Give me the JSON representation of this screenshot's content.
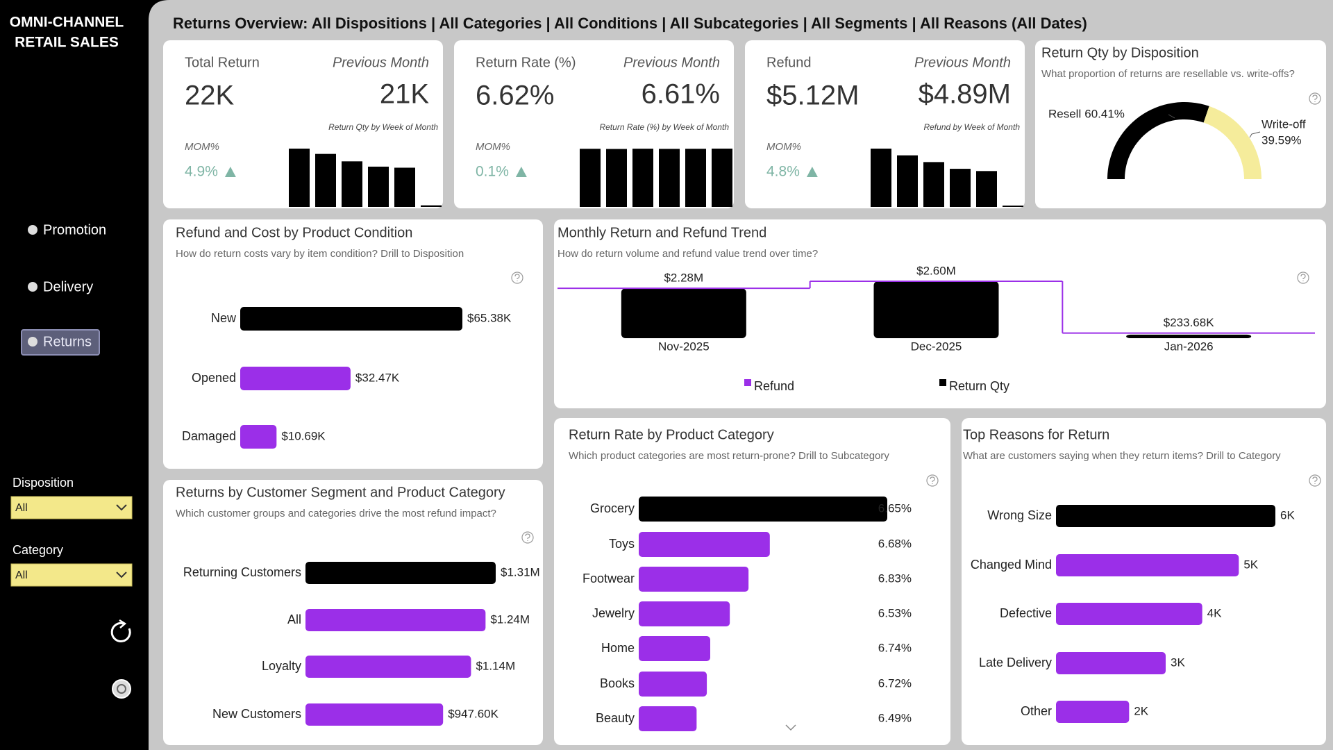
{
  "sidebar": {
    "title_lines": [
      "OMNI-CHANNEL",
      "RETAIL SALES"
    ],
    "nav": [
      "Promotion",
      "Delivery",
      "Returns"
    ],
    "filters": [
      {
        "label": "Disposition",
        "value": "All"
      },
      {
        "label": "Category",
        "value": "All"
      }
    ]
  },
  "header": {
    "title": "Returns Overview: All Dispositions | All Categories | All Conditions | All Subcategories | All Segments | All Reasons (All Dates)"
  },
  "kpis": [
    {
      "label": "Total Return",
      "compare_label": "Previous Month",
      "value": "22K",
      "previous": "21K",
      "chart_title": "Return Qty by Week of Month",
      "mom_label": "MOM%",
      "mom": "4.9%",
      "weekly": [
        5500,
        5000,
        4300,
        3800,
        3700,
        150
      ]
    },
    {
      "label": "Return Rate (%)",
      "compare_label": "Previous Month",
      "value": "6.62%",
      "previous": "6.61%",
      "chart_title": "Return Rate (%) by Week of Month",
      "mom_label": "MOM%",
      "mom": "0.1%",
      "weekly": [
        6.62,
        6.6,
        6.63,
        6.61,
        6.62,
        6.64
      ]
    },
    {
      "label": "Refund",
      "compare_label": "Previous Month",
      "value": "$5.12M",
      "previous": "$4.89M",
      "chart_title": "Refund by Week of Month",
      "mom_label": "MOM%",
      "mom": "4.8%",
      "weekly": [
        1300000,
        1150000,
        1000000,
        850000,
        800000,
        30000
      ]
    }
  ],
  "chart_data": [
    {
      "type": "gauge",
      "title": "Return Qty by Disposition",
      "subtitle": "What proportion of returns are resellable vs. write-offs?",
      "categories": [
        "Resell",
        "Write-off"
      ],
      "values": [
        60.41,
        39.59
      ],
      "value_labels": [
        "60.41%",
        "39.59%"
      ],
      "colors": [
        "#000000",
        "#f5ec9b"
      ]
    },
    {
      "type": "combo",
      "title": "Monthly Return and Refund Trend",
      "subtitle": "How do return volume and refund value trend over time?",
      "categories": [
        "Nov-2025",
        "Dec-2025",
        "Jan-2026"
      ],
      "series": [
        {
          "name": "Refund",
          "color": "#9b2fe8",
          "values": [
            2280000,
            2600000,
            233680
          ],
          "value_labels": [
            "$2.28M",
            "$2.60M",
            "$233.68K"
          ]
        },
        {
          "name": "Return Qty",
          "color": "#000000",
          "values": [
            21000,
            24000,
            1500
          ]
        }
      ]
    },
    {
      "type": "hbar",
      "title": "Refund and Cost by Product Condition",
      "subtitle": "How do return costs vary by item condition? Drill to Disposition",
      "categories": [
        "New",
        "Opened",
        "Damaged"
      ],
      "values": [
        65380,
        32470,
        10690
      ],
      "value_labels": [
        "$65.38K",
        "$32.47K",
        "$10.69K"
      ],
      "colors": [
        "#000000",
        "#9b2fe8",
        "#9b2fe8"
      ]
    },
    {
      "type": "hbar",
      "title": "Returns by Customer Segment and Product Category",
      "subtitle": "Which customer groups and categories drive the most refund impact?",
      "categories": [
        "Returning Customers",
        "All",
        "Loyalty",
        "New Customers"
      ],
      "values": [
        1310000,
        1240000,
        1140000,
        947600
      ],
      "value_labels": [
        "$1.31M",
        "$1.24M",
        "$1.14M",
        "$947.60K"
      ],
      "colors": [
        "#000000",
        "#9b2fe8",
        "#9b2fe8",
        "#9b2fe8"
      ]
    },
    {
      "type": "hbar",
      "title": "Return Rate by Product Category",
      "subtitle": "Which product categories are most return-prone? Drill to Subcategory",
      "categories": [
        "Grocery",
        "Toys",
        "Footwear",
        "Jewelry",
        "Home",
        "Books",
        "Beauty"
      ],
      "values": [
        6.65,
        6.68,
        6.83,
        6.53,
        6.74,
        6.72,
        6.49
      ],
      "value_labels": [
        "6.65%",
        "6.68%",
        "6.83%",
        "6.53%",
        "6.74%",
        "6.72%",
        "6.49%"
      ],
      "bar_values": [
        2920,
        1540,
        1290,
        1070,
        840,
        800,
        680
      ],
      "colors": [
        "#000000",
        "#9b2fe8",
        "#9b2fe8",
        "#9b2fe8",
        "#9b2fe8",
        "#9b2fe8",
        "#9b2fe8"
      ]
    },
    {
      "type": "hbar",
      "title": "Top Reasons for Return",
      "subtitle": "What are customers saying when they return items? Drill to Category",
      "categories": [
        "Wrong Size",
        "Changed Mind",
        "Defective",
        "Late Delivery",
        "Other"
      ],
      "values": [
        6000,
        5000,
        4000,
        3000,
        2000
      ],
      "value_labels": [
        "6K",
        "5K",
        "4K",
        "3K",
        "2K"
      ],
      "colors": [
        "#000000",
        "#9b2fe8",
        "#9b2fe8",
        "#9b2fe8",
        "#9b2fe8"
      ]
    }
  ]
}
